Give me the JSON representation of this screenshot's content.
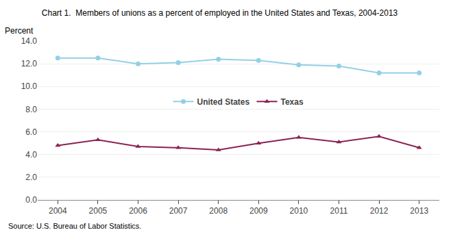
{
  "chart_data": {
    "type": "line",
    "title": "Chart 1.  Members of unions as a percent of employed in the United States and Texas, 2004-2013",
    "ylabel": "Percent",
    "annotations": [
      "Source: U.S. Bureau of Labor Statistics."
    ],
    "x": [
      2004,
      2005,
      2006,
      2007,
      2008,
      2009,
      2010,
      2011,
      2012,
      2013
    ],
    "series": [
      {
        "name": "United States",
        "color": "#92D0E8",
        "marker": "circle",
        "values": [
          12.5,
          12.5,
          12.0,
          12.1,
          12.4,
          12.3,
          11.9,
          11.8,
          11.2,
          11.2
        ]
      },
      {
        "name": "Texas",
        "color": "#8B2252",
        "marker": "triangle-up",
        "values": [
          4.8,
          5.3,
          4.7,
          4.6,
          4.4,
          5.0,
          5.5,
          5.1,
          5.6,
          4.6
        ]
      }
    ],
    "xlim": [
      2003.5,
      2013.5
    ],
    "xticks": [
      2004,
      2005,
      2006,
      2007,
      2008,
      2009,
      2010,
      2011,
      2012,
      2013
    ],
    "ylim": [
      0,
      14.0
    ],
    "yticks": [
      {
        "value": 0.0,
        "label": "0.0"
      },
      {
        "value": 2.0,
        "label": "2.0"
      },
      {
        "value": 4.0,
        "label": "4.0"
      },
      {
        "value": 6.0,
        "label": "6.0"
      },
      {
        "value": 8.0,
        "label": "8.0"
      },
      {
        "value": 10.0,
        "label": "10.0"
      },
      {
        "value": 12.0,
        "label": "12.0"
      },
      {
        "value": 14.0,
        "label": "14.0"
      }
    ],
    "grid": "y",
    "legend": "center"
  }
}
